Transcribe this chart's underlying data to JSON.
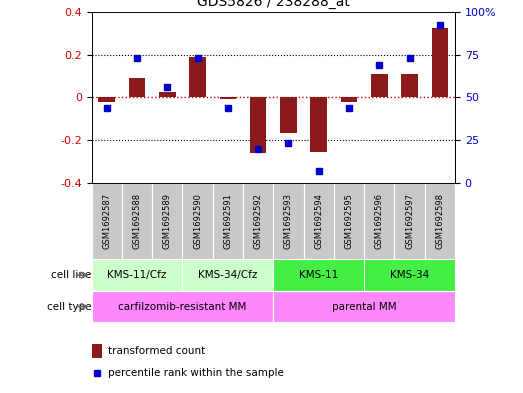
{
  "title": "GDS5826 / 238288_at",
  "samples": [
    "GSM1692587",
    "GSM1692588",
    "GSM1692589",
    "GSM1692590",
    "GSM1692591",
    "GSM1692592",
    "GSM1692593",
    "GSM1692594",
    "GSM1692595",
    "GSM1692596",
    "GSM1692597",
    "GSM1692598"
  ],
  "transformed_count": [
    -0.02,
    0.09,
    0.025,
    0.19,
    -0.01,
    -0.26,
    -0.165,
    -0.255,
    -0.02,
    0.11,
    0.11,
    0.325
  ],
  "percentile_rank": [
    44,
    73,
    56,
    73,
    44,
    20,
    23,
    7,
    44,
    69,
    73,
    92
  ],
  "bar_color": "#8B1A1A",
  "dot_color": "#0000CC",
  "ylim_left": [
    -0.4,
    0.4
  ],
  "ylim_right": [
    0,
    100
  ],
  "yticks_left": [
    -0.4,
    -0.2,
    0.0,
    0.2,
    0.4
  ],
  "ytick_labels_left": [
    "-0.4",
    "-0.2",
    "0",
    "0.2",
    "0.4"
  ],
  "yticks_right": [
    0,
    25,
    50,
    75,
    100
  ],
  "ytick_labels_right": [
    "0",
    "25",
    "50",
    "75",
    "100%"
  ],
  "cell_line_groups": [
    {
      "label": "KMS-11/Cfz",
      "start": 0,
      "end": 2,
      "color": "#CCFFCC"
    },
    {
      "label": "KMS-34/Cfz",
      "start": 3,
      "end": 5,
      "color": "#CCFFCC"
    },
    {
      "label": "KMS-11",
      "start": 6,
      "end": 8,
      "color": "#44EE44"
    },
    {
      "label": "KMS-34",
      "start": 9,
      "end": 11,
      "color": "#44EE44"
    }
  ],
  "cell_type_groups": [
    {
      "label": "carfilzomib-resistant MM",
      "start": 0,
      "end": 5,
      "color": "#FF88FF"
    },
    {
      "label": "parental MM",
      "start": 6,
      "end": 11,
      "color": "#FF88FF"
    }
  ],
  "cell_line_label": "cell line",
  "cell_type_label": "cell type",
  "legend_bar_color": "#8B1A1A",
  "legend_dot_color": "#0000CC",
  "legend_bar_label": "transformed count",
  "legend_dot_label": "percentile rank within the sample",
  "zero_line_color": "#CC0000",
  "hline_color": "black",
  "sample_cell_color": "#C8C8C8"
}
